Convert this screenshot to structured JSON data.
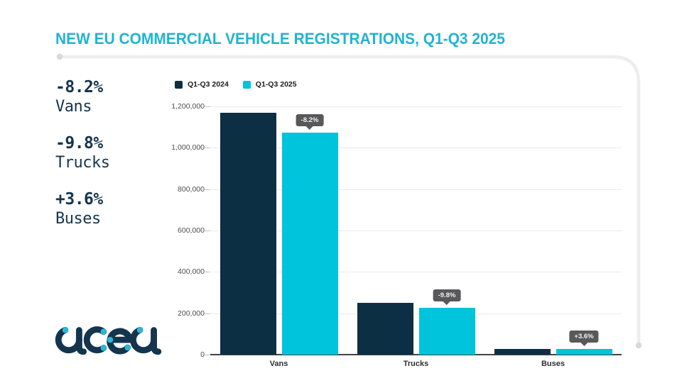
{
  "header": {
    "title": "NEW EU COMMERCIAL VEHICLE REGISTRATIONS, Q1-Q3 2025"
  },
  "stats": [
    {
      "pct": "-8.2%",
      "label": "Vans"
    },
    {
      "pct": "-9.8%",
      "label": "Trucks"
    },
    {
      "pct": "+3.6%",
      "label": "Buses"
    }
  ],
  "logo": {
    "name": "acea"
  },
  "chart_data": {
    "type": "bar",
    "title": "New EU commercial vehicle registrations, Q1-Q3 2025",
    "categories": [
      "Vans",
      "Trucks",
      "Buses"
    ],
    "series": [
      {
        "name": "Q1-Q3 2024",
        "color": "#0d2f44",
        "values": [
          1170000,
          250000,
          26600
        ]
      },
      {
        "name": "Q1-Q3 2025",
        "color": "#00c3dc",
        "values": [
          1073000,
          225500,
          27600
        ]
      }
    ],
    "change_labels": [
      "-8.2%",
      "-9.8%",
      "+3.6%"
    ],
    "xlabel": "",
    "ylabel": "",
    "ylim": [
      0,
      1200000
    ],
    "y_ticks": [
      {
        "value": 0,
        "label": "0"
      },
      {
        "value": 200000,
        "label": "200,000"
      },
      {
        "value": 400000,
        "label": "400,000"
      },
      {
        "value": 600000,
        "label": "600,000"
      },
      {
        "value": 800000,
        "label": "800,000"
      },
      {
        "value": 1000000,
        "label": "1,000,000"
      },
      {
        "value": 1200000,
        "label": "1,200,000"
      }
    ],
    "grid": true,
    "legend_position": "top-left"
  },
  "colors": {
    "title_cyan": "#1fb4d2",
    "bar_navy": "#0d2f44",
    "bar_cyan": "#00c3dc",
    "tooltip_bg": "#58585a",
    "frame_line": "#ededed"
  }
}
